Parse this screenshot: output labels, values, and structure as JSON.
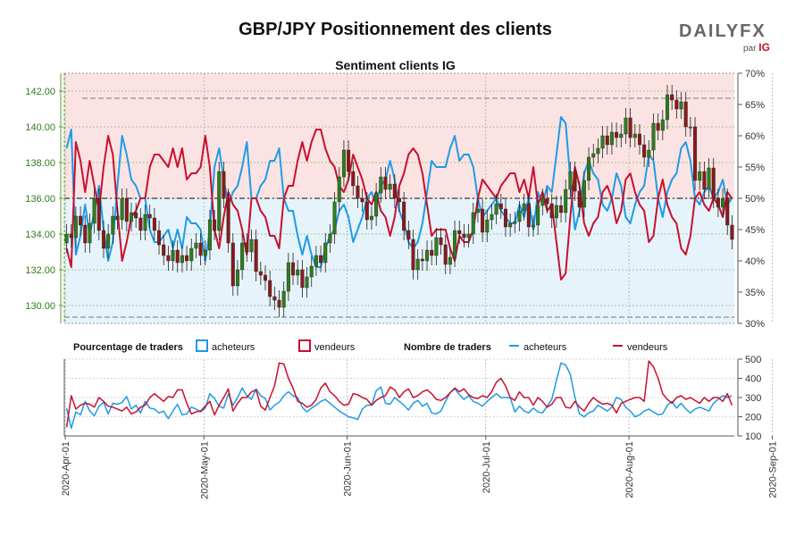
{
  "header": {
    "title": "GBP/JPY Positionnement des clients",
    "subtitle": "Sentiment clients IG",
    "brand": "DAILYFX",
    "brand_sub": "par",
    "brand_sub2": "IG"
  },
  "legend": {
    "pct_label": "Pourcentage de traders",
    "pct_buy": "acheteurs",
    "pct_sell": "vendeurs",
    "num_label": "Nombre de traders",
    "num_buy": "acheteurs",
    "num_sell": "vendeurs"
  },
  "colors": {
    "buy": "#1e9be6",
    "sell": "#c8102e",
    "up_candle": "#2e7d1c",
    "down_candle": "#8b1a1a",
    "buy_zone": "#e6f3fb",
    "sell_zone": "#fbe3e3",
    "grid_green": "#5aa02c"
  },
  "chart_data": {
    "type": "line",
    "title": "GBP/JPY Positionnement des clients",
    "subtitle": "Sentiment clients IG",
    "price_axis": {
      "ylim": [
        129,
        143
      ],
      "ticks": [
        "130.00",
        "132.00",
        "134.00",
        "136.00",
        "138.00",
        "140.00",
        "142.00"
      ]
    },
    "pct_axis": {
      "ylim": [
        30,
        70
      ],
      "ticks": [
        "30%",
        "35%",
        "40%",
        "45%",
        "50%",
        "55%",
        "60%",
        "65%",
        "70%"
      ]
    },
    "count_axis": {
      "ylim": [
        100,
        500
      ],
      "ticks": [
        "100",
        "200",
        "300",
        "400",
        "500"
      ]
    },
    "x_labels": [
      "2020-Apr-01",
      "2020-May-01",
      "2020-Jun-01",
      "2020-Jul-01",
      "2020-Aug-01",
      "2020-Sep-01"
    ],
    "days": 145,
    "price_close": [
      134,
      133.8,
      135,
      134.5,
      133.5,
      134.6,
      136,
      134.2,
      133.2,
      134,
      135,
      134.8,
      136,
      134.7,
      135.2,
      134.9,
      134.2,
      135.1,
      134.9,
      134.2,
      133.4,
      132.8,
      132.5,
      133.1,
      132.4,
      132.8,
      132.5,
      133.2,
      133.5,
      132.8,
      133.1,
      134.8,
      134.2,
      137.5,
      136,
      133.5,
      131.1,
      132,
      133.5,
      133,
      133.7,
      131.9,
      131.7,
      131.4,
      130.5,
      130.3,
      129.9,
      130.8,
      132.4,
      131.7,
      132,
      131,
      131.6,
      132.2,
      132.8,
      132.4,
      133.5,
      134,
      135.8,
      137.2,
      138.7,
      137.5,
      136.7,
      136,
      135.8,
      134.8,
      135,
      136.3,
      137.2,
      136.5,
      136.8,
      136,
      135.8,
      134.2,
      133.7,
      132,
      132.6,
      132.5,
      133.1,
      132.8,
      133.8,
      133.4,
      132.3,
      132.7,
      134.2,
      134,
      133.8,
      134,
      135.2,
      135.4,
      134.1,
      134.8,
      135.1,
      135.7,
      135.4,
      134.4,
      134.6,
      134.7,
      135.3,
      135.7,
      134.4,
      134.5,
      135.6,
      136,
      135.7,
      134.9,
      135.6,
      135.2,
      136.5,
      137.5,
      136.4,
      135.5,
      137,
      138.3,
      138.5,
      138.8,
      139.5,
      139,
      139.7,
      139.4,
      139.6,
      140.5,
      139.4,
      139.6,
      139,
      138.3,
      138.7,
      140.2,
      139.8,
      140.4,
      141.8,
      141.5,
      141,
      141.4,
      140,
      140,
      137,
      137.5,
      136.5,
      137.7,
      136,
      135.5,
      136,
      134.5,
      133.7
    ],
    "series": [
      {
        "name": "acheteurs %",
        "values": [
          58,
          61,
          41,
          44,
          49,
          44,
          48,
          52,
          45,
          40,
          43,
          52,
          60,
          57,
          53,
          52,
          50,
          50,
          45,
          43,
          43,
          44,
          45,
          42,
          45,
          42,
          47,
          46,
          46,
          45,
          40,
          45,
          55,
          58,
          53,
          49,
          51,
          52,
          55,
          59,
          50,
          50,
          52,
          53,
          56,
          56,
          58,
          50,
          48,
          48,
          44,
          41,
          44,
          41,
          39,
          39,
          42,
          44,
          45,
          48,
          49,
          47,
          43,
          45,
          47,
          50,
          51,
          49,
          52,
          53,
          56,
          53,
          48,
          46,
          43,
          42,
          43,
          46,
          51,
          56,
          55,
          55,
          55,
          58,
          60,
          56,
          57,
          57,
          55,
          50,
          47,
          48,
          49,
          50,
          48,
          47,
          46,
          46,
          49,
          47,
          50,
          45,
          51,
          49,
          52,
          51,
          57,
          63,
          62,
          53,
          45,
          48,
          54,
          56,
          54,
          53,
          49,
          48,
          50,
          54,
          52,
          47,
          46,
          49,
          51,
          52,
          57,
          56,
          50,
          47,
          51,
          53,
          54,
          58,
          59,
          56,
          50,
          49,
          51,
          52,
          50,
          51,
          53,
          49,
          50
        ]
      },
      {
        "name": "vendeurs %",
        "values": [
          42,
          39,
          59,
          56,
          51,
          56,
          52,
          48,
          55,
          60,
          57,
          48,
          40,
          43,
          47,
          48,
          50,
          50,
          55,
          57,
          57,
          56,
          55,
          58,
          55,
          58,
          53,
          54,
          54,
          55,
          60,
          55,
          45,
          42,
          47,
          51,
          49,
          48,
          45,
          41,
          50,
          50,
          48,
          47,
          44,
          44,
          42,
          50,
          52,
          52,
          56,
          59,
          56,
          59,
          61,
          61,
          58,
          56,
          55,
          52,
          51,
          53,
          57,
          55,
          53,
          50,
          49,
          51,
          48,
          47,
          44,
          47,
          52,
          54,
          57,
          58,
          57,
          54,
          49,
          44,
          45,
          45,
          45,
          42,
          40,
          44,
          43,
          43,
          45,
          50,
          53,
          52,
          51,
          50,
          52,
          53,
          54,
          54,
          51,
          53,
          50,
          55,
          49,
          51,
          48,
          49,
          43,
          37,
          38,
          47,
          55,
          52,
          46,
          44,
          46,
          47,
          51,
          52,
          50,
          46,
          48,
          53,
          54,
          51,
          49,
          48,
          43,
          44,
          50,
          53,
          49,
          47,
          46,
          42,
          41,
          44,
          50,
          51,
          49,
          48,
          50,
          49,
          47,
          51,
          50
        ]
      },
      {
        "name": "acheteurs",
        "values": [
          245,
          140,
          225,
          210,
          280,
          230,
          205,
          255,
          275,
          215,
          270,
          265,
          275,
          305,
          240,
          260,
          220,
          280,
          245,
          240,
          220,
          230,
          190,
          230,
          265,
          210,
          215,
          250,
          240,
          225,
          245,
          320,
          295,
          255,
          245,
          320,
          260,
          300,
          350,
          310,
          290,
          345,
          310,
          295,
          235,
          260,
          275,
          310,
          330,
          310,
          300,
          250,
          225,
          245,
          260,
          280,
          290,
          270,
          250,
          230,
          215,
          200,
          195,
          185,
          240,
          260,
          260,
          335,
          355,
          270,
          265,
          300,
          280,
          260,
          235,
          270,
          285,
          255,
          270,
          220,
          215,
          230,
          280,
          325,
          345,
          315,
          290,
          310,
          280,
          270,
          255,
          280,
          300,
          320,
          300,
          300,
          300,
          225,
          255,
          230,
          220,
          245,
          225,
          220,
          255,
          290,
          390,
          480,
          470,
          420,
          300,
          215,
          200,
          220,
          230,
          260,
          245,
          230,
          250,
          300,
          290,
          250,
          230,
          200,
          210,
          230,
          240,
          225,
          210,
          215,
          260,
          280,
          245,
          270,
          240,
          220,
          240,
          250,
          240,
          230,
          270,
          290,
          310,
          300,
          310
        ]
      },
      {
        "name": "vendeurs",
        "values": [
          145,
          310,
          240,
          260,
          270,
          265,
          250,
          300,
          280,
          255,
          250,
          240,
          230,
          250,
          215,
          225,
          250,
          260,
          300,
          320,
          300,
          280,
          305,
          300,
          340,
          340,
          270,
          215,
          225,
          230,
          255,
          280,
          210,
          260,
          300,
          345,
          230,
          270,
          300,
          300,
          330,
          340,
          255,
          235,
          300,
          360,
          480,
          475,
          400,
          350,
          280,
          270,
          250,
          260,
          290,
          350,
          375,
          330,
          310,
          280,
          260,
          265,
          320,
          315,
          300,
          290,
          260,
          285,
          300,
          310,
          355,
          340,
          300,
          330,
          345,
          300,
          310,
          330,
          340,
          320,
          290,
          285,
          300,
          325,
          350,
          330,
          345,
          315,
          300,
          295,
          310,
          300,
          330,
          380,
          400,
          360,
          300,
          285,
          330,
          300,
          300,
          260,
          300,
          280,
          250,
          265,
          300,
          300,
          250,
          245,
          280,
          250,
          230,
          270,
          300,
          280,
          265,
          270,
          260,
          220,
          270,
          280,
          290,
          300,
          300,
          280,
          490,
          460,
          400,
          320,
          290,
          270,
          300,
          310,
          290,
          300,
          285,
          270,
          300,
          280,
          300,
          300,
          280,
          320,
          260
        ]
      }
    ]
  }
}
